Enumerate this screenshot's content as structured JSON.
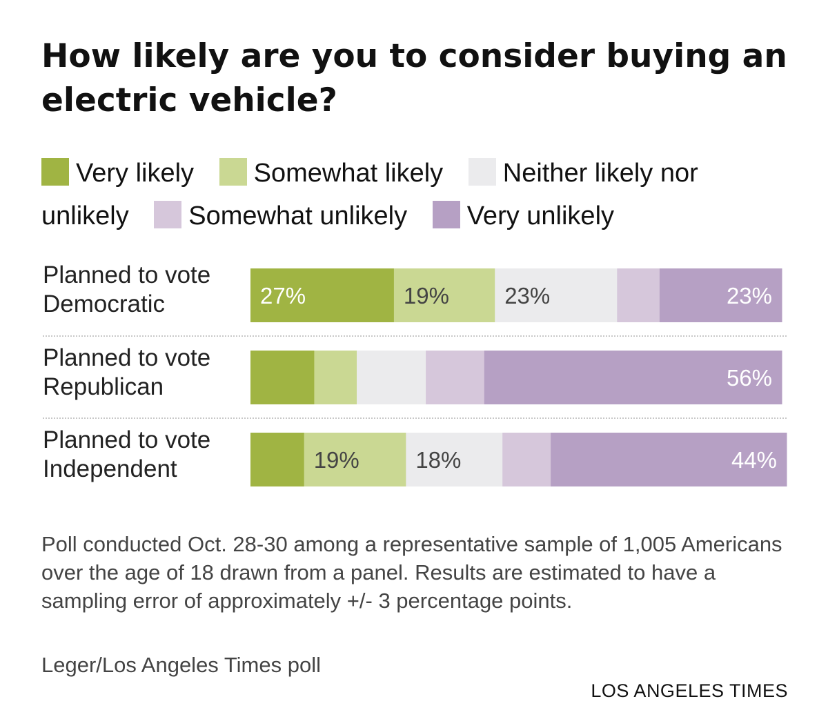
{
  "title": "How likely are you to consider buying an electric vehicle?",
  "legend": [
    {
      "label": "Very likely",
      "color": "#a0b443"
    },
    {
      "label": "Somewhat likely",
      "color": "#cad893"
    },
    {
      "label": "Neither likely nor unlikely",
      "color": "#ebebed"
    },
    {
      "label": "Somewhat unlikely",
      "color": "#d6c7db"
    },
    {
      "label": "Very unlikely",
      "color": "#b6a0c4"
    }
  ],
  "chart_data": {
    "type": "bar",
    "orientation": "horizontal",
    "stacked": true,
    "title": "How likely are you to consider buying an electric vehicle?",
    "categories": [
      "Planned to vote Democratic",
      "Planned to vote Republican",
      "Planned to vote Independent"
    ],
    "series": [
      {
        "name": "Very likely",
        "color": "#a0b443",
        "values": [
          27,
          12,
          10
        ],
        "labels": [
          "27%",
          "",
          ""
        ]
      },
      {
        "name": "Somewhat likely",
        "color": "#cad893",
        "values": [
          19,
          8,
          19
        ],
        "labels": [
          "19%",
          "",
          "19%"
        ]
      },
      {
        "name": "Neither likely nor unlikely",
        "color": "#ebebed",
        "values": [
          23,
          13,
          18
        ],
        "labels": [
          "23%",
          "",
          "18%"
        ]
      },
      {
        "name": "Somewhat unlikely",
        "color": "#d6c7db",
        "values": [
          8,
          11,
          9
        ],
        "labels": [
          "",
          "",
          ""
        ]
      },
      {
        "name": "Very unlikely",
        "color": "#b6a0c4",
        "values": [
          23,
          56,
          44
        ],
        "labels": [
          "23%",
          "56%",
          "44%"
        ]
      }
    ],
    "label_colors": [
      "#ffffff",
      "#444444",
      "#444444",
      "#444444",
      "#ffffff"
    ]
  },
  "rows": [
    {
      "label_line1": "Planned to vote",
      "label_line2": "Democratic"
    },
    {
      "label_line1": "Planned to vote",
      "label_line2": "Republican"
    },
    {
      "label_line1": "Planned to vote",
      "label_line2": "Independent"
    }
  ],
  "note": "Poll conducted Oct. 28-30 among a representative sample of 1,005 Americans over the age of 18 drawn from a panel. Results are estimated to have a sampling error of approximately +/- 3 percentage points.",
  "source": "Leger/Los Angeles Times poll",
  "credit": "LOS ANGELES TIMES"
}
